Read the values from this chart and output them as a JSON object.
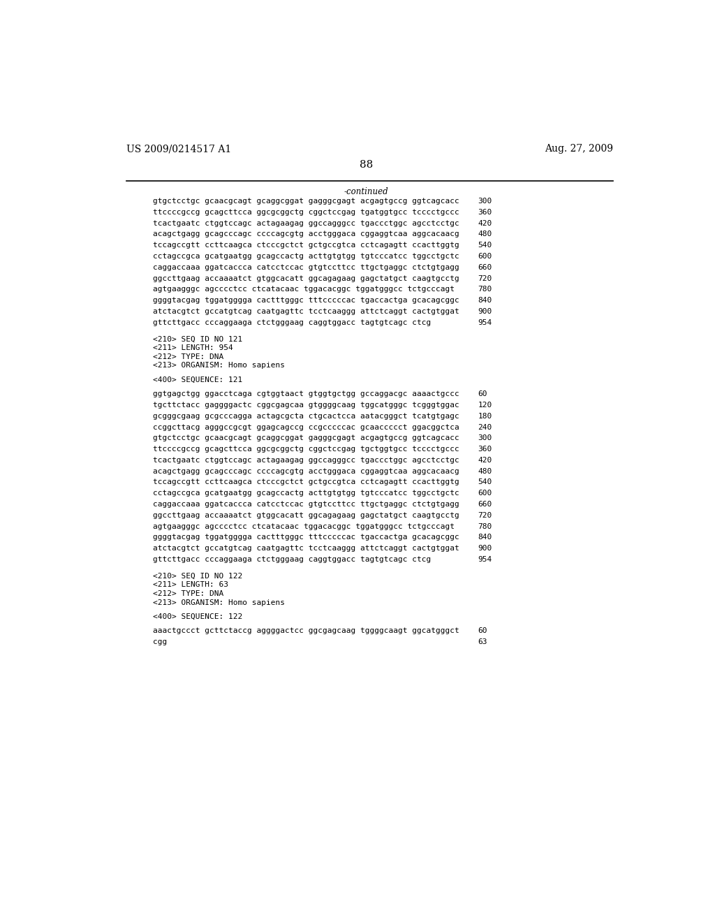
{
  "left_header": "US 2009/0214517 A1",
  "right_header": "Aug. 27, 2009",
  "page_number": "88",
  "continued_label": "-continued",
  "background_color": "#ffffff",
  "text_color": "#000000",
  "font_size_header": 10.0,
  "font_size_page": 11.0,
  "mono_size": 8.0,
  "lines": [
    {
      "text": "gtgctcctgc gcaacgcagt gcaggcggat gagggcgagt acgagtgccg ggtcagcacc",
      "num": "300"
    },
    {
      "text": "ttccccgccg gcagcttcca ggcgcggctg cggctccgag tgatggtgcc tcccctgccc",
      "num": "360"
    },
    {
      "text": "tcactgaatc ctggtccagc actagaagag ggccagggcc tgaccctggc agcctcctgc",
      "num": "420"
    },
    {
      "text": "acagctgagg gcagcccagc ccccagcgtg acctgggaca cggaggtcaa aggcacaacg",
      "num": "480"
    },
    {
      "text": "tccagccgtt ccttcaagca ctcccgctct gctgccgtca cctcagagtt ccacttggtg",
      "num": "540"
    },
    {
      "text": "cctagccgca gcatgaatgg gcagccactg acttgtgtgg tgtcccatcc tggcctgctc",
      "num": "600"
    },
    {
      "text": "caggaccaaa ggatcaccca catcctccac gtgtccttcc ttgctgaggc ctctgtgagg",
      "num": "660"
    },
    {
      "text": "ggccttgaag accaaaatct gtggcacatt ggcagagaag gagctatgct caagtgcctg",
      "num": "720"
    },
    {
      "text": "agtgaagggc agcccctcc ctcatacaac tggacacggc tggatgggcc tctgcccagt",
      "num": "780"
    },
    {
      "text": "ggggtacgag tggatgggga cactttgggc tttcccccac tgaccactga gcacagcggc",
      "num": "840"
    },
    {
      "text": "atctacgtct gccatgtcag caatgagttc tcctcaaggg attctcaggt cactgtggat",
      "num": "900"
    },
    {
      "text": "gttcttgacc cccaggaaga ctctgggaag caggtggacc tagtgtcagc ctcg",
      "num": "954"
    },
    {
      "text": "",
      "num": "",
      "type": "blank"
    },
    {
      "text": "<210> SEQ ID NO 121",
      "num": "",
      "type": "meta"
    },
    {
      "text": "<211> LENGTH: 954",
      "num": "",
      "type": "meta"
    },
    {
      "text": "<212> TYPE: DNA",
      "num": "",
      "type": "meta"
    },
    {
      "text": "<213> ORGANISM: Homo sapiens",
      "num": "",
      "type": "meta"
    },
    {
      "text": "",
      "num": "",
      "type": "blank"
    },
    {
      "text": "<400> SEQUENCE: 121",
      "num": "",
      "type": "meta"
    },
    {
      "text": "",
      "num": "",
      "type": "blank"
    },
    {
      "text": "ggtgagctgg ggacctcaga cgtggtaact gtggtgctgg gccaggacgc aaaactgccc",
      "num": "60"
    },
    {
      "text": "tgcttctacc gaggggactc cggcgagcaa gtggggcaag tggcatgggc tcgggtggac",
      "num": "120"
    },
    {
      "text": "gcgggcgaag gcgcccagga actagcgcta ctgcactcca aatacgggct tcatgtgagc",
      "num": "180"
    },
    {
      "text": "ccggcttacg agggccgcgt ggagcagccg ccgcccccac gcaaccccct ggacggctca",
      "num": "240"
    },
    {
      "text": "gtgctcctgc gcaacgcagt gcaggcggat gagggcgagt acgagtgccg ggtcagcacc",
      "num": "300"
    },
    {
      "text": "ttccccgccg gcagcttcca ggcgcggctg cggctccgag tgctggtgcc tcccctgccc",
      "num": "360"
    },
    {
      "text": "tcactgaatc ctggtccagc actagaagag ggccagggcc tgaccctggc agcctcctgc",
      "num": "420"
    },
    {
      "text": "acagctgagg gcagcccagc ccccagcgtg acctgggaca cggaggtcaa aggcacaacg",
      "num": "480"
    },
    {
      "text": "tccagccgtt ccttcaagca ctcccgctct gctgccgtca cctcagagtt ccacttggtg",
      "num": "540"
    },
    {
      "text": "cctagccgca gcatgaatgg gcagccactg acttgtgtgg tgtcccatcc tggcctgctc",
      "num": "600"
    },
    {
      "text": "caggaccaaa ggatcaccca catcctccac gtgtccttcc ttgctgaggc ctctgtgagg",
      "num": "660"
    },
    {
      "text": "ggccttgaag accaaaatct gtggcacatt ggcagagaag gagctatgct caagtgcctg",
      "num": "720"
    },
    {
      "text": "agtgaagggc agcccctcc ctcatacaac tggacacggc tggatgggcc tctgcccagt",
      "num": "780"
    },
    {
      "text": "ggggtacgag tggatgggga cactttgggc tttcccccac tgaccactga gcacagcggc",
      "num": "840"
    },
    {
      "text": "atctacgtct gccatgtcag caatgagttc tcctcaaggg attctcaggt cactgtggat",
      "num": "900"
    },
    {
      "text": "gttcttgacc cccaggaaga ctctgggaag caggtggacc tagtgtcagc ctcg",
      "num": "954"
    },
    {
      "text": "",
      "num": "",
      "type": "blank"
    },
    {
      "text": "<210> SEQ ID NO 122",
      "num": "",
      "type": "meta"
    },
    {
      "text": "<211> LENGTH: 63",
      "num": "",
      "type": "meta"
    },
    {
      "text": "<212> TYPE: DNA",
      "num": "",
      "type": "meta"
    },
    {
      "text": "<213> ORGANISM: Homo sapiens",
      "num": "",
      "type": "meta"
    },
    {
      "text": "",
      "num": "",
      "type": "blank"
    },
    {
      "text": "<400> SEQUENCE: 122",
      "num": "",
      "type": "meta"
    },
    {
      "text": "",
      "num": "",
      "type": "blank"
    },
    {
      "text": "aaactgccct gcttctaccg aggggactcc ggcgagcaag tggggcaagt ggcatgggct",
      "num": "60"
    },
    {
      "text": "cgg",
      "num": "63"
    }
  ]
}
